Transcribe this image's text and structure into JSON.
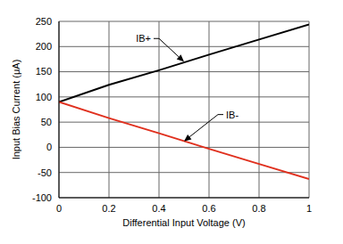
{
  "chart_data": {
    "type": "line",
    "xlabel": "Differential Input Voltage (V)",
    "ylabel": "Input Bias Current (μA)",
    "x": [
      0,
      0.2,
      0.4,
      0.6,
      0.8,
      1
    ],
    "series": [
      {
        "name": "IB+",
        "color": "#000000",
        "values": [
          90,
          124,
          153,
          184,
          214,
          244
        ]
      },
      {
        "name": "IB-",
        "color": "#e0301e",
        "values": [
          90,
          58,
          28,
          -3,
          -33,
          -63
        ]
      }
    ],
    "xlim": [
      0,
      1
    ],
    "xticks": [
      0,
      0.2,
      0.4,
      0.6,
      0.8,
      1
    ],
    "ylim": [
      -100,
      250
    ],
    "yticks": [
      -100,
      -50,
      0,
      50,
      100,
      150,
      200,
      250
    ],
    "grid": true,
    "annotations": [
      {
        "text": "IB+",
        "x": 0.5,
        "y": 170
      },
      {
        "text": "IB-",
        "x": 0.5,
        "y": 12
      }
    ]
  }
}
